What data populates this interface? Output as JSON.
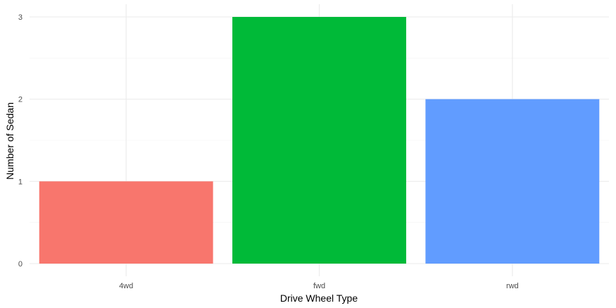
{
  "chart_data": {
    "type": "bar",
    "title": "",
    "xlabel": "Drive Wheel Type",
    "ylabel": "Number of Sedan",
    "categories": [
      "4wd",
      "fwd",
      "rwd"
    ],
    "values": [
      1,
      3,
      2
    ],
    "colors": [
      "#F8766D",
      "#00BA38",
      "#619CFF"
    ],
    "ylim": [
      0,
      3
    ],
    "yticks": [
      "0",
      "1",
      "2",
      "3"
    ],
    "grid": true,
    "legend": "none"
  }
}
